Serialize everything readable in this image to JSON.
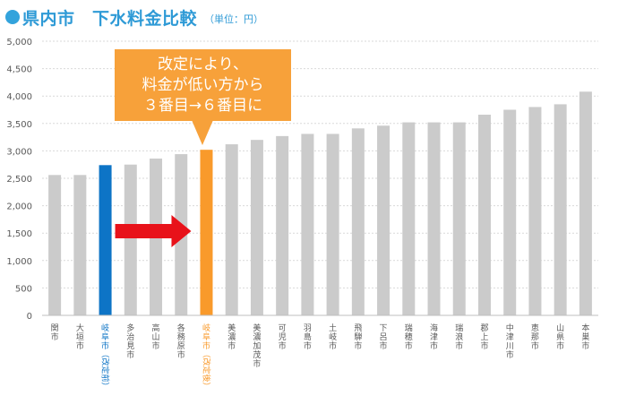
{
  "title": {
    "main": "県内市　下水料金比較",
    "unit": "（単位：円）"
  },
  "callout": {
    "lines": [
      "改定により、",
      "料金が低い方から",
      "３番目→６番目に"
    ]
  },
  "colors": {
    "default_bar": "#cbcbcb",
    "before_bar": "#0d74c6",
    "after_bar": "#f99a2b",
    "arrow": "#e8121a",
    "title": "#2e9ad6",
    "callout_bg": "#f7a13a"
  },
  "chart_data": {
    "type": "bar",
    "title": "県内市　下水料金比較",
    "unit": "（単位：円）",
    "ylim": [
      0,
      5000
    ],
    "yticks": [
      "0",
      "500",
      "1,000",
      "1,500",
      "2,000",
      "2,500",
      "3,000",
      "3,500",
      "4,000",
      "4,500",
      "5,000"
    ],
    "grid": true,
    "categories": [
      "関市",
      "大垣市",
      "岐阜市（改定前）",
      "多治見市",
      "高山市",
      "各務原市",
      "岐阜市（改定後）",
      "美濃市",
      "美濃加茂市",
      "可児市",
      "羽島市",
      "土岐市",
      "飛騨市",
      "下呂市",
      "瑞穂市",
      "海津市",
      "瑞浪市",
      "郡上市",
      "中津川市",
      "恵那市",
      "山県市",
      "本巣市"
    ],
    "values": [
      2560,
      2560,
      2740,
      2750,
      2860,
      2940,
      3020,
      3120,
      3200,
      3270,
      3310,
      3310,
      3410,
      3460,
      3520,
      3520,
      3520,
      3660,
      3750,
      3800,
      3850,
      4080
    ],
    "highlight": {
      "2": "before",
      "6": "after"
    }
  }
}
